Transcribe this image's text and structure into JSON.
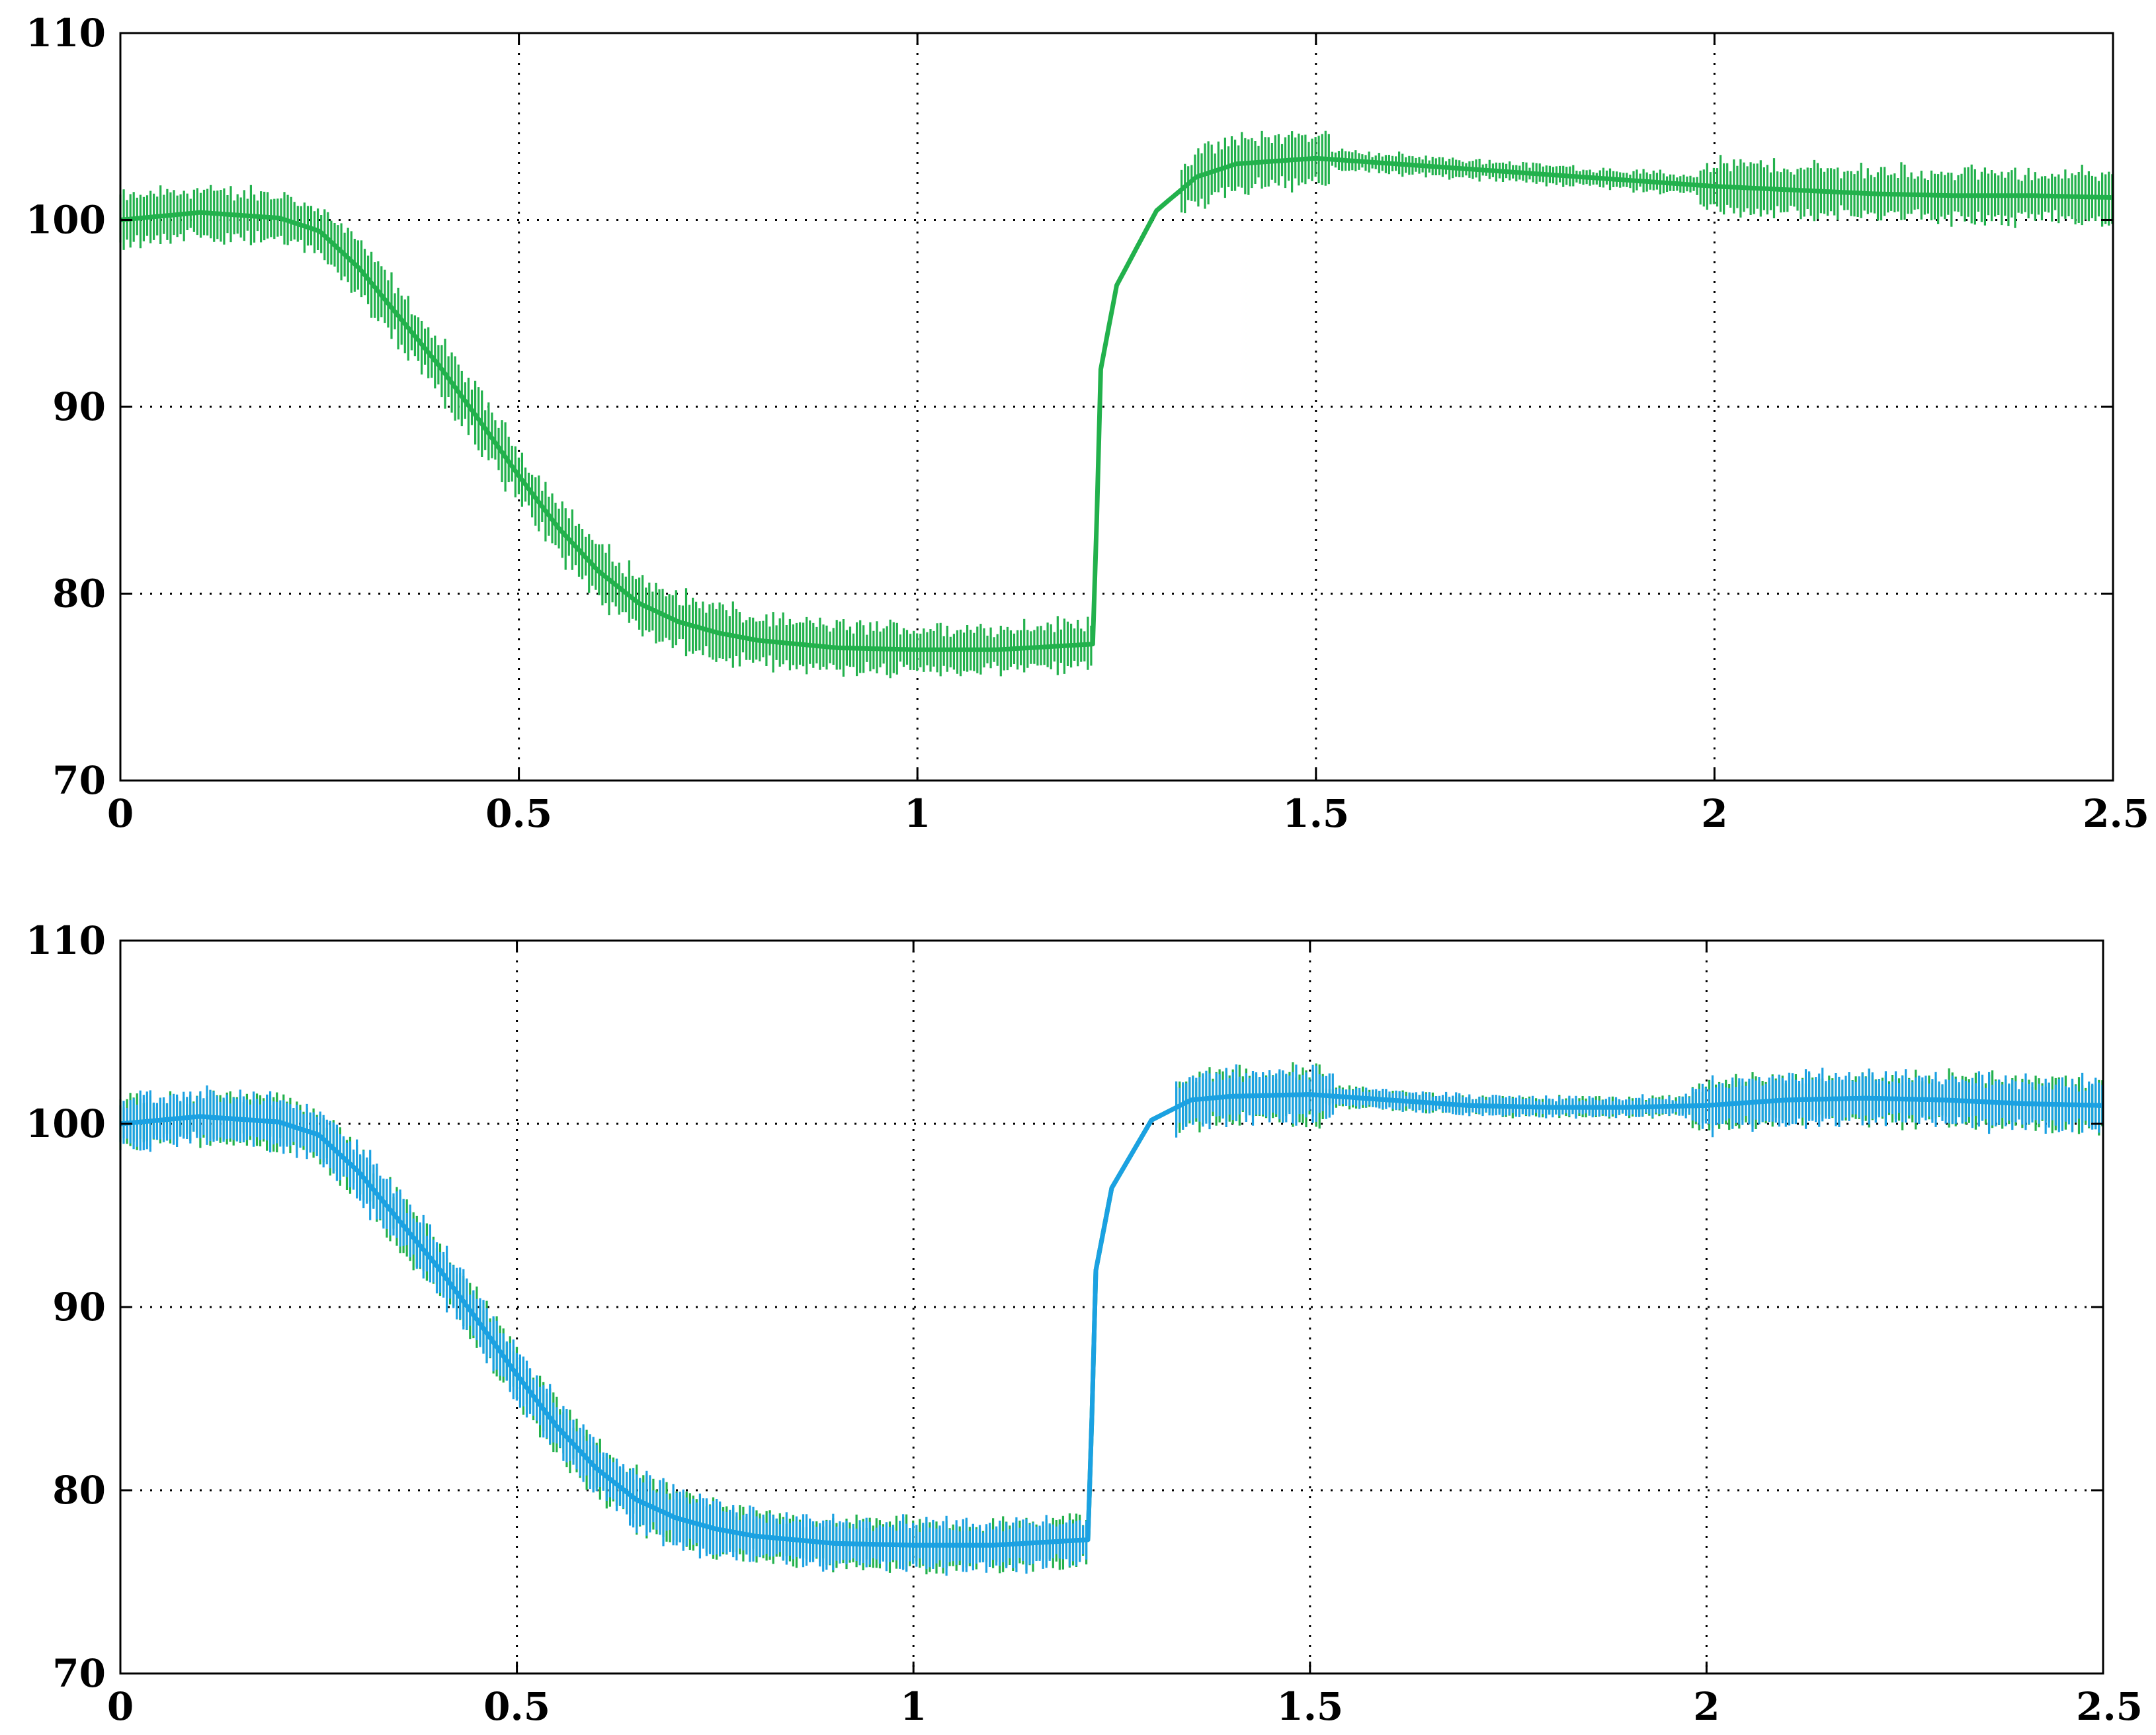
{
  "chart_data": [
    {
      "type": "line",
      "title": "",
      "xlabel": "",
      "ylabel": "",
      "xlim": [
        0,
        2.5
      ],
      "ylim": [
        70,
        110
      ],
      "x_ticks": [
        0,
        0.5,
        1,
        1.5,
        2,
        2.5
      ],
      "x_tick_labels": [
        "0",
        "0.5",
        "1",
        "1.5",
        "2",
        "2.5"
      ],
      "y_ticks": [
        70,
        80,
        90,
        100,
        110
      ],
      "y_tick_labels": [
        "70",
        "80",
        "90",
        "100",
        "110"
      ],
      "grid": true,
      "grid_style": "dotted",
      "legend": "none",
      "series": [
        {
          "color": "#22b14c",
          "style": "noisy",
          "x": [
            0,
            0.1,
            0.2,
            0.25,
            0.3,
            0.35,
            0.4,
            0.45,
            0.5,
            0.55,
            0.6,
            0.65,
            0.7,
            0.75,
            0.8,
            0.9,
            1.0,
            1.1,
            1.22,
            1.225,
            1.23,
            1.25,
            1.3,
            1.35,
            1.4,
            1.5,
            1.6,
            1.7,
            1.8,
            1.9,
            2.0,
            2.1,
            2.2,
            2.3,
            2.4,
            2.5
          ],
          "y": [
            100,
            100.4,
            100.1,
            99.4,
            97.4,
            94.8,
            92.2,
            89.3,
            86.3,
            83.5,
            81.2,
            79.5,
            78.5,
            77.9,
            77.5,
            77.1,
            77.0,
            77.0,
            77.3,
            84,
            92,
            96.5,
            100.5,
            102.3,
            103.0,
            103.3,
            103.0,
            102.7,
            102.4,
            102.1,
            101.8,
            101.6,
            101.4,
            101.3,
            101.3,
            101.2
          ],
          "noise": [
            {
              "x0": 0,
              "x1": 0.27,
              "amp": 1.8
            },
            {
              "x0": 0.27,
              "x1": 0.77,
              "amp": 2.0
            },
            {
              "x0": 0.77,
              "x1": 1.23,
              "amp": 1.7
            },
            {
              "x0": 1.33,
              "x1": 1.52,
              "amp": 1.9
            },
            {
              "x0": 1.52,
              "x1": 1.98,
              "amp": 0.7
            },
            {
              "x0": 1.98,
              "x1": 2.5,
              "amp": 1.8
            }
          ]
        }
      ]
    },
    {
      "type": "line",
      "title": "",
      "xlabel": "",
      "ylabel": "",
      "xlim": [
        0,
        2.5
      ],
      "ylim": [
        70,
        110
      ],
      "x_ticks": [
        0,
        0.5,
        1,
        1.5,
        2,
        2.5
      ],
      "x_tick_labels": [
        "0",
        "0.5",
        "1",
        "1.5",
        "2",
        "2.5"
      ],
      "y_ticks": [
        70,
        80,
        90,
        100,
        110
      ],
      "y_tick_labels": [
        "70",
        "80",
        "90",
        "100",
        "110"
      ],
      "grid": true,
      "grid_style": "dotted",
      "legend": "none",
      "series": [
        {
          "color": "#22b14c",
          "style": "noisy",
          "x": [
            0,
            0.1,
            0.2,
            0.25,
            0.3,
            0.35,
            0.4,
            0.45,
            0.5,
            0.55,
            0.6,
            0.65,
            0.7,
            0.75,
            0.8,
            0.9,
            1.0,
            1.1,
            1.22,
            1.225,
            1.23,
            1.25,
            1.3,
            1.35,
            1.4,
            1.5,
            1.6,
            1.7,
            1.8,
            1.9,
            2.0,
            2.1,
            2.2,
            2.3,
            2.4,
            2.5
          ],
          "y": [
            100,
            100.4,
            100.1,
            99.4,
            97.4,
            94.8,
            92.2,
            89.3,
            86.3,
            83.5,
            81.2,
            79.5,
            78.5,
            77.9,
            77.5,
            77.1,
            77.0,
            77.0,
            77.3,
            84,
            92,
            96.5,
            100.2,
            101.3,
            101.5,
            101.6,
            101.3,
            101.0,
            100.9,
            100.9,
            101.0,
            101.3,
            101.4,
            101.3,
            101.1,
            101.0
          ],
          "noise": [
            {
              "x0": 0,
              "x1": 0.27,
              "amp": 1.8
            },
            {
              "x0": 0.27,
              "x1": 0.77,
              "amp": 2.0
            },
            {
              "x0": 0.77,
              "x1": 1.23,
              "amp": 1.7
            },
            {
              "x0": 1.33,
              "x1": 1.52,
              "amp": 1.9
            },
            {
              "x0": 1.52,
              "x1": 1.98,
              "amp": 0.7
            },
            {
              "x0": 1.98,
              "x1": 2.5,
              "amp": 1.8
            }
          ]
        },
        {
          "color": "#1ba1e2",
          "style": "noisy",
          "x": [
            0,
            0.1,
            0.2,
            0.25,
            0.3,
            0.35,
            0.4,
            0.45,
            0.5,
            0.55,
            0.6,
            0.65,
            0.7,
            0.75,
            0.8,
            0.9,
            1.0,
            1.1,
            1.22,
            1.225,
            1.23,
            1.25,
            1.3,
            1.35,
            1.4,
            1.5,
            1.6,
            1.7,
            1.8,
            1.9,
            2.0,
            2.1,
            2.2,
            2.3,
            2.4,
            2.5
          ],
          "y": [
            100,
            100.4,
            100.1,
            99.4,
            97.4,
            94.8,
            92.2,
            89.3,
            86.3,
            83.5,
            81.2,
            79.5,
            78.5,
            77.9,
            77.5,
            77.1,
            77.0,
            77.0,
            77.3,
            84,
            92,
            96.5,
            100.2,
            101.3,
            101.5,
            101.6,
            101.3,
            101.0,
            100.9,
            100.9,
            101.0,
            101.3,
            101.4,
            101.3,
            101.1,
            101.0
          ],
          "noise": [
            {
              "x0": 0,
              "x1": 0.27,
              "amp": 1.8
            },
            {
              "x0": 0.27,
              "x1": 0.77,
              "amp": 2.0
            },
            {
              "x0": 0.77,
              "x1": 1.23,
              "amp": 1.7
            },
            {
              "x0": 1.33,
              "x1": 1.53,
              "amp": 1.9
            },
            {
              "x0": 1.53,
              "x1": 1.98,
              "amp": 0.7
            },
            {
              "x0": 1.98,
              "x1": 2.5,
              "amp": 1.8
            }
          ]
        }
      ]
    }
  ]
}
